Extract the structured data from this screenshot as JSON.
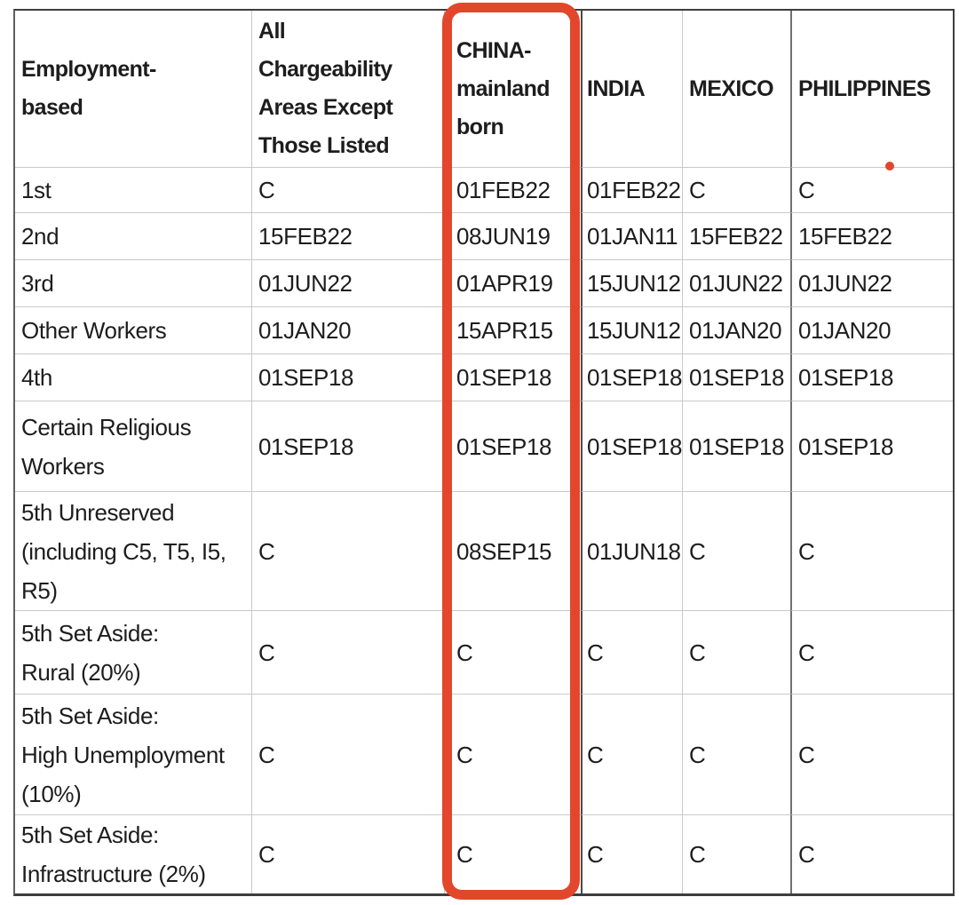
{
  "annotation": {
    "highlight_color": "#e2472c",
    "highlighted_column": "CHINA-mainland born",
    "dot_marker_near": "PHILIPPINES"
  },
  "table": {
    "header": [
      "Employment-\nbased",
      "All\nChargeability\nAreas Except\nThose Listed",
      "CHINA-\nmainland\nborn",
      "INDIA",
      "MEXICO",
      "PHILIPPINES"
    ],
    "rows": [
      {
        "label": "1st",
        "values": [
          "C",
          "01FEB22",
          "01FEB22",
          "C",
          "C"
        ]
      },
      {
        "label": "2nd",
        "values": [
          "15FEB22",
          "08JUN19",
          "01JAN11",
          "15FEB22",
          "15FEB22"
        ]
      },
      {
        "label": "3rd",
        "values": [
          "01JUN22",
          "01APR19",
          "15JUN12",
          "01JUN22",
          "01JUN22"
        ]
      },
      {
        "label": "Other Workers",
        "values": [
          "01JAN20",
          "15APR15",
          "15JUN12",
          "01JAN20",
          "01JAN20"
        ]
      },
      {
        "label": "4th",
        "values": [
          "01SEP18",
          "01SEP18",
          "01SEP18",
          "01SEP18",
          "01SEP18"
        ]
      },
      {
        "label": "Certain Religious\nWorkers",
        "values": [
          "01SEP18",
          "01SEP18",
          "01SEP18",
          "01SEP18",
          "01SEP18"
        ]
      },
      {
        "label": "5th Unreserved\n(including C5, T5, I5,\nR5)",
        "values": [
          "C",
          "08SEP15",
          "01JUN18",
          "C",
          "C"
        ]
      },
      {
        "label": "5th Set Aside:\nRural (20%)",
        "values": [
          "C",
          "C",
          "C",
          "C",
          "C"
        ]
      },
      {
        "label": "5th Set Aside:\nHigh Unemployment\n(10%)",
        "values": [
          "C",
          "C",
          "C",
          "C",
          "C"
        ]
      },
      {
        "label": "5th Set Aside:\nInfrastructure (2%)",
        "values": [
          "C",
          "C",
          "C",
          "C",
          "C"
        ]
      }
    ]
  }
}
